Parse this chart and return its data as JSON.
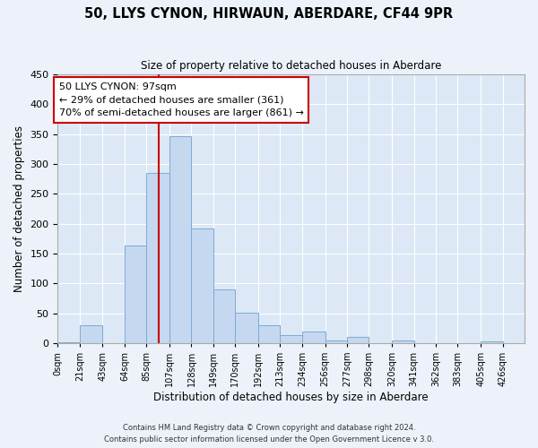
{
  "title": "50, LLYS CYNON, HIRWAUN, ABERDARE, CF44 9PR",
  "subtitle": "Size of property relative to detached houses in Aberdare",
  "xlabel": "Distribution of detached houses by size in Aberdare",
  "ylabel": "Number of detached properties",
  "bin_labels": [
    "0sqm",
    "21sqm",
    "43sqm",
    "64sqm",
    "85sqm",
    "107sqm",
    "128sqm",
    "149sqm",
    "170sqm",
    "192sqm",
    "213sqm",
    "234sqm",
    "256sqm",
    "277sqm",
    "298sqm",
    "320sqm",
    "341sqm",
    "362sqm",
    "383sqm",
    "405sqm",
    "426sqm"
  ],
  "bin_edges": [
    0,
    21,
    43,
    64,
    85,
    107,
    128,
    149,
    170,
    192,
    213,
    234,
    256,
    277,
    298,
    320,
    341,
    362,
    383,
    405,
    426
  ],
  "bar_heights": [
    2,
    30,
    0,
    163,
    285,
    347,
    192,
    90,
    51,
    30,
    14,
    20,
    5,
    11,
    0,
    5,
    0,
    0,
    0,
    3
  ],
  "bar_color": "#c5d8f0",
  "bar_edge_color": "#7aacd4",
  "ylim": [
    0,
    450
  ],
  "yticks": [
    0,
    50,
    100,
    150,
    200,
    250,
    300,
    350,
    400,
    450
  ],
  "vline_x": 97,
  "vline_color": "#cc0000",
  "annotation_title": "50 LLYS CYNON: 97sqm",
  "annotation_line1": "← 29% of detached houses are smaller (361)",
  "annotation_line2": "70% of semi-detached houses are larger (861) →",
  "annotation_box_color": "#ffffff",
  "annotation_box_edge": "#cc0000",
  "footer1": "Contains HM Land Registry data © Crown copyright and database right 2024.",
  "footer2": "Contains public sector information licensed under the Open Government Licence v 3.0.",
  "bg_color": "#edf2fa",
  "plot_bg_color": "#dce8f5"
}
